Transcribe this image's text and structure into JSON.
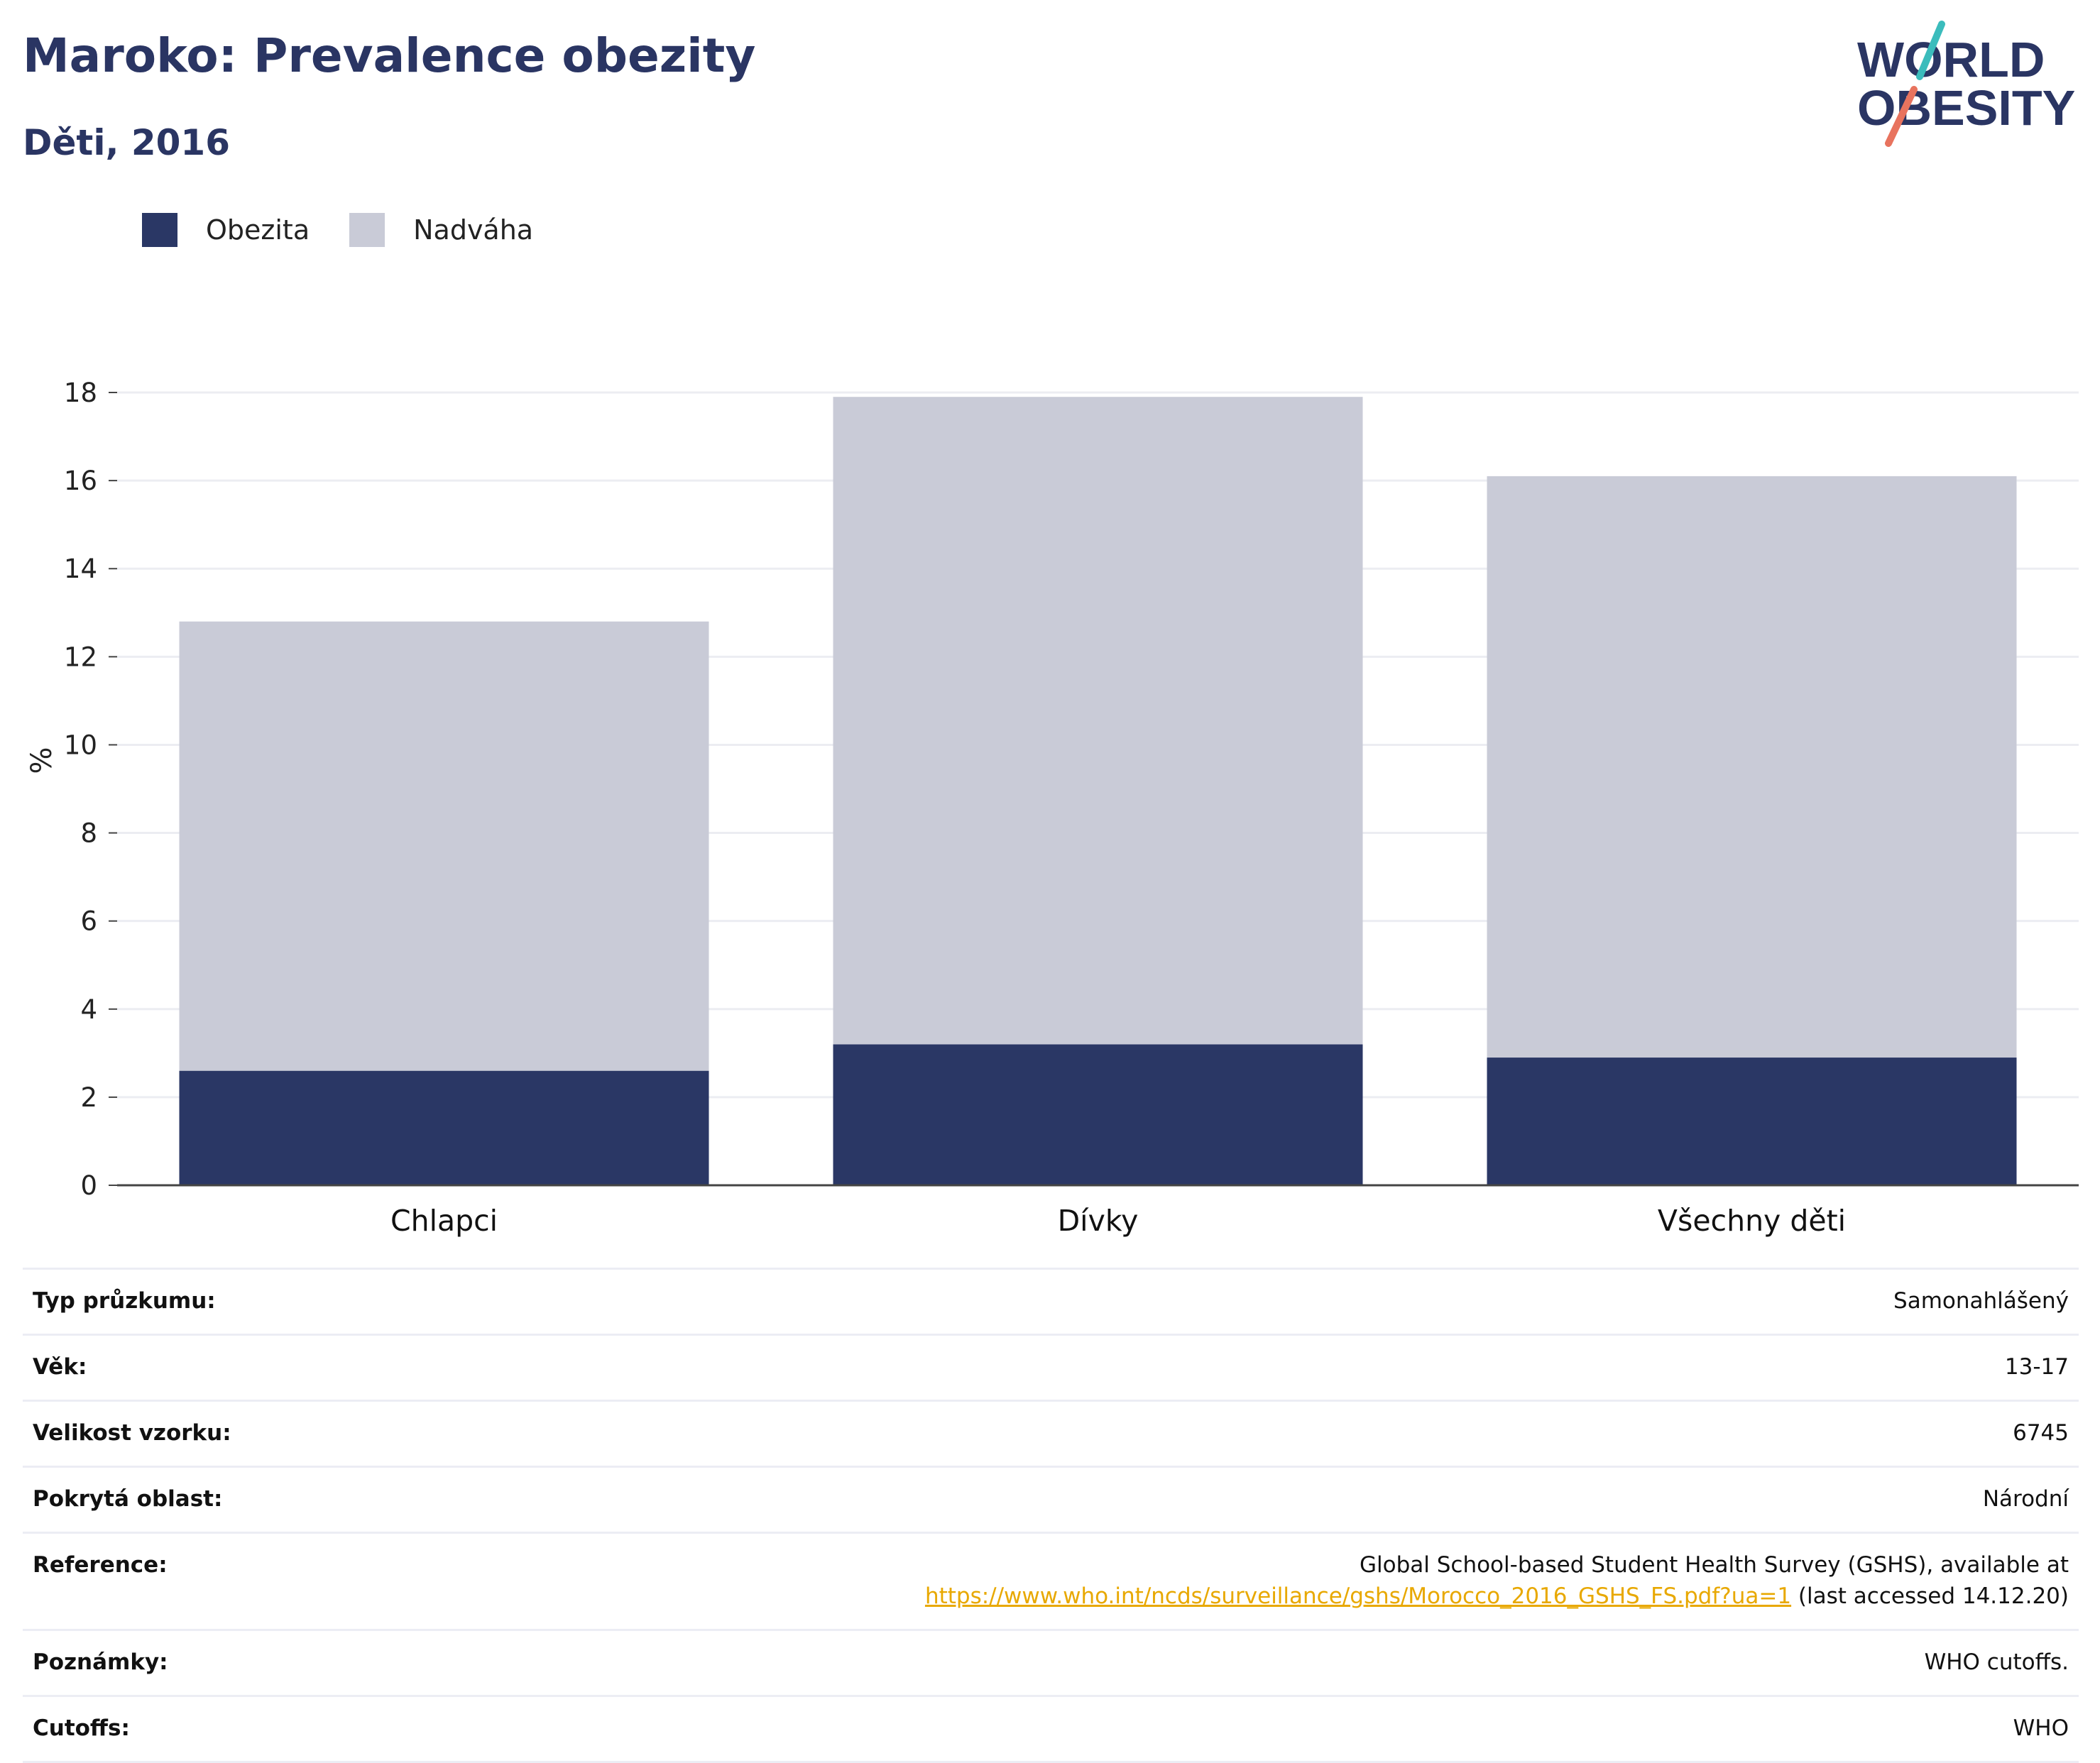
{
  "title": "Maroko: Prevalence obezity",
  "subtitle": "Děti, 2016",
  "logo": {
    "line1": "WORLD",
    "line2": "OBESITY"
  },
  "colors": {
    "title": "#2a3563",
    "obesity": "#2a3765",
    "overweight": "#c9cbd7",
    "link": "#e8a800",
    "logo_teal": "#3bbcbc",
    "logo_coral": "#e8735e"
  },
  "legend": [
    {
      "label": "Obezita",
      "color": "#2a3765"
    },
    {
      "label": "Nadváha",
      "color": "#c9cbd7"
    }
  ],
  "chart_data": {
    "type": "bar",
    "stacked": true,
    "categories": [
      "Chlapci",
      "Dívky",
      "Všechny děti"
    ],
    "series": [
      {
        "name": "Obezita",
        "values": [
          2.6,
          3.2,
          2.9
        ],
        "color": "#2a3765"
      },
      {
        "name": "Nadváha",
        "values": [
          10.2,
          14.7,
          13.2
        ],
        "color": "#c9cbd7"
      }
    ],
    "ylabel": "%",
    "ylim": [
      0,
      18
    ],
    "yticks": [
      0,
      2,
      4,
      6,
      8,
      10,
      12,
      14,
      16,
      18
    ],
    "grid": true,
    "legend_position": "top-left"
  },
  "info": {
    "survey_type": {
      "label": "Typ průzkumu:",
      "value": "Samonahlášený"
    },
    "age": {
      "label": "Věk:",
      "value": "13-17"
    },
    "sample_size": {
      "label": "Velikost vzorku:",
      "value": "6745"
    },
    "area": {
      "label": "Pokrytá oblast:",
      "value": "Národní"
    },
    "reference": {
      "label": "Reference:",
      "text_before": "Global School-based Student Health Survey (GSHS), available at",
      "link": "https://www.who.int/ncds/surveillance/gshs/Morocco_2016_GSHS_FS.pdf?ua=1",
      "text_after": " (last accessed 14.12.20)"
    },
    "notes": {
      "label": "Poznámky:",
      "value": "WHO cutoffs."
    },
    "cutoffs": {
      "label": "Cutoffs:",
      "value": "WHO"
    }
  }
}
